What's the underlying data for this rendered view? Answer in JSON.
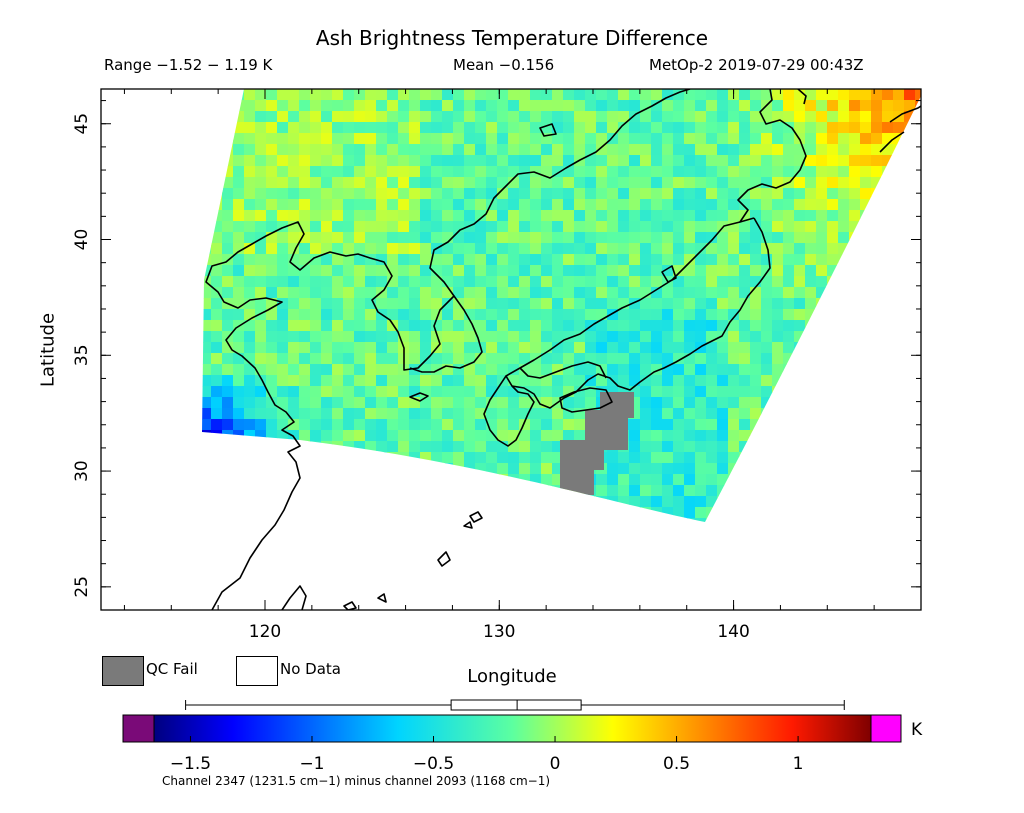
{
  "title": "Ash Brightness Temperature Difference",
  "header": {
    "range": "Range −1.52 − 1.19 K",
    "mean": "Mean −0.156",
    "satellite": "MetOp-2 2019-07-29 00:43Z"
  },
  "axes": {
    "xlabel": "Longitude",
    "ylabel": "Latitude",
    "lon_range": [
      113,
      148
    ],
    "lat_range": [
      24,
      46.5
    ],
    "lon_ticks": [
      120,
      130,
      140
    ],
    "lat_ticks": [
      25,
      30,
      35,
      40,
      45
    ]
  },
  "legend": {
    "qc_fail": "QC Fail",
    "no_data": "No Data",
    "qc_fail_color": "#7a7a7a"
  },
  "colorbar": {
    "unit": "K",
    "min": -1.65,
    "max": 1.3,
    "ticks": [
      -1.5,
      -1,
      -0.5,
      0,
      0.5,
      1
    ],
    "tick_labels": [
      "−1.5",
      "−1",
      "−0.5",
      "0",
      "0.5",
      "1"
    ],
    "data_range": [
      -1.52,
      1.19
    ],
    "mean": -0.156,
    "underflow_color": "#7a0a78",
    "overflow_color": "#ff00ff"
  },
  "footnote": "Channel 2347 (1231.5 cm−1) minus channel 2093 (1168 cm−1)"
}
